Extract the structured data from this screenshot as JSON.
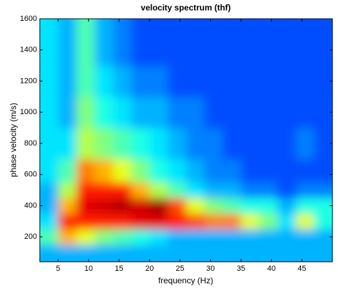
{
  "chart_data": {
    "type": "heatmap",
    "title": "velocity spectrum (thf)",
    "x_label": "frequency (Hz)",
    "y_label": "phase velocity (m/s)",
    "xlim": [
      2,
      50
    ],
    "ylim": [
      40,
      1600
    ],
    "xticks": [
      5,
      10,
      15,
      20,
      25,
      30,
      35,
      40,
      45
    ],
    "yticks": [
      200,
      400,
      600,
      800,
      1000,
      1200,
      1400,
      1600
    ],
    "x_bins": [
      2,
      5,
      8,
      11,
      14,
      17,
      20,
      23,
      26,
      29,
      32,
      35,
      38,
      41,
      44,
      47,
      50
    ],
    "y_bins": [
      40,
      150,
      250,
      350,
      450,
      550,
      700,
      900,
      1100,
      1300,
      1600
    ],
    "colormap": "jet",
    "values": [
      [
        0.3,
        0.3,
        0.3,
        0.3,
        0.3,
        0.3,
        0.3,
        0.3,
        0.3,
        0.3,
        0.3,
        0.3,
        0.3,
        0.3,
        0.3,
        0.3
      ],
      [
        0.45,
        0.7,
        0.6,
        0.5,
        0.45,
        0.4,
        0.35,
        0.3,
        0.3,
        0.3,
        0.3,
        0.3,
        0.3,
        0.3,
        0.3,
        0.3
      ],
      [
        0.35,
        0.85,
        0.85,
        0.85,
        0.85,
        0.9,
        0.9,
        0.85,
        0.8,
        0.75,
        0.75,
        0.6,
        0.5,
        0.35,
        0.6,
        0.4
      ],
      [
        0.3,
        0.7,
        0.9,
        0.92,
        0.95,
        0.92,
        0.97,
        0.8,
        0.6,
        0.5,
        0.45,
        0.4,
        0.4,
        0.3,
        0.4,
        0.4
      ],
      [
        0.3,
        0.55,
        0.85,
        0.85,
        0.85,
        0.7,
        0.55,
        0.45,
        0.35,
        0.3,
        0.3,
        0.25,
        0.25,
        0.2,
        0.25,
        0.25
      ],
      [
        0.35,
        0.45,
        0.75,
        0.7,
        0.6,
        0.5,
        0.4,
        0.35,
        0.3,
        0.25,
        0.25,
        0.2,
        0.2,
        0.2,
        0.2,
        0.2
      ],
      [
        0.35,
        0.35,
        0.55,
        0.5,
        0.45,
        0.4,
        0.35,
        0.3,
        0.25,
        0.25,
        0.2,
        0.2,
        0.2,
        0.2,
        0.25,
        0.2
      ],
      [
        0.35,
        0.3,
        0.5,
        0.4,
        0.35,
        0.3,
        0.3,
        0.25,
        0.25,
        0.2,
        0.2,
        0.2,
        0.2,
        0.2,
        0.2,
        0.2
      ],
      [
        0.35,
        0.3,
        0.45,
        0.35,
        0.3,
        0.25,
        0.25,
        0.2,
        0.2,
        0.2,
        0.2,
        0.2,
        0.2,
        0.2,
        0.2,
        0.2
      ],
      [
        0.35,
        0.3,
        0.45,
        0.3,
        0.25,
        0.2,
        0.2,
        0.2,
        0.2,
        0.2,
        0.2,
        0.2,
        0.2,
        0.2,
        0.2,
        0.2
      ]
    ]
  }
}
